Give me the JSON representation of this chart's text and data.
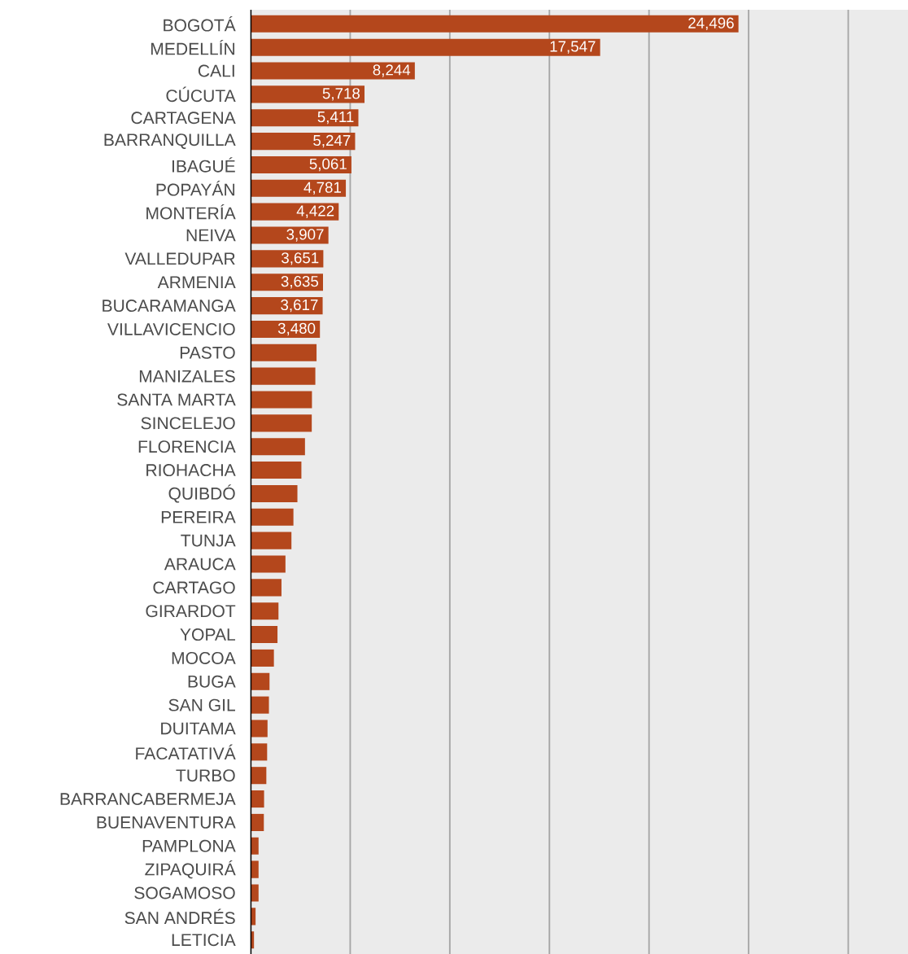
{
  "chart_data": {
    "type": "bar",
    "orientation": "horizontal",
    "categories": [
      "BOGOTÁ",
      "MEDELLÍN",
      "CALI",
      "CÚCUTA",
      "CARTAGENA",
      "BARRANQUILLA",
      "IBAGUÉ",
      "POPAYÁN",
      "MONTERÍA",
      "NEIVA",
      "VALLEDUPAR",
      "ARMENIA",
      "BUCARAMANGA",
      "VILLAVICENCIO",
      "PASTO",
      "MANIZALES",
      "SANTA MARTA",
      "SINCELEJO",
      "FLORENCIA",
      "RIOHACHA",
      "QUIBDÓ",
      "PEREIRA",
      "TUNJA",
      "ARAUCA",
      "CARTAGO",
      "GIRARDOT",
      "YOPAL",
      "MOCOA",
      "BUGA",
      "SAN GIL",
      "DUITAMA",
      "FACATATIVÁ",
      "TURBO",
      "BARRANCABERMEJA",
      "BUENAVENTURA",
      "PAMPLONA",
      "ZIPAQUIRÁ",
      "SOGAMOSO",
      "SAN ANDRÉS",
      "LETICIA"
    ],
    "values": [
      24496,
      17547,
      8244,
      5718,
      5411,
      5247,
      5061,
      4781,
      4422,
      3907,
      3651,
      3635,
      3617,
      3480,
      3310,
      3250,
      3080,
      3070,
      2730,
      2550,
      2350,
      2150,
      2050,
      1750,
      1550,
      1400,
      1350,
      1170,
      950,
      920,
      850,
      830,
      790,
      677,
      665,
      400,
      400,
      400,
      250,
      170
    ],
    "value_labels": [
      "24,496",
      "17,547",
      "8,244",
      "5,718",
      "5,411",
      "5,247",
      "5,061",
      "4,781",
      "4,422",
      "3,907",
      "3,651",
      "3,635",
      "3,617",
      "3,480",
      null,
      null,
      null,
      null,
      null,
      null,
      null,
      null,
      null,
      null,
      null,
      null,
      null,
      null,
      null,
      null,
      null,
      null,
      null,
      null,
      null,
      null,
      null,
      null,
      null,
      null
    ],
    "color": "#b4471c",
    "xlim": [
      0,
      33000
    ],
    "xticks": [
      {
        "value": 0,
        "label": null
      },
      {
        "value": 5000,
        "label": null
      },
      {
        "value": 10000,
        "label": null
      },
      {
        "value": 15000,
        "label": null
      },
      {
        "value": 20000,
        "label": null
      },
      {
        "value": 25000,
        "label": null
      },
      {
        "value": 30000,
        "label": null
      }
    ],
    "grid": "x",
    "tick_labels": "y"
  }
}
